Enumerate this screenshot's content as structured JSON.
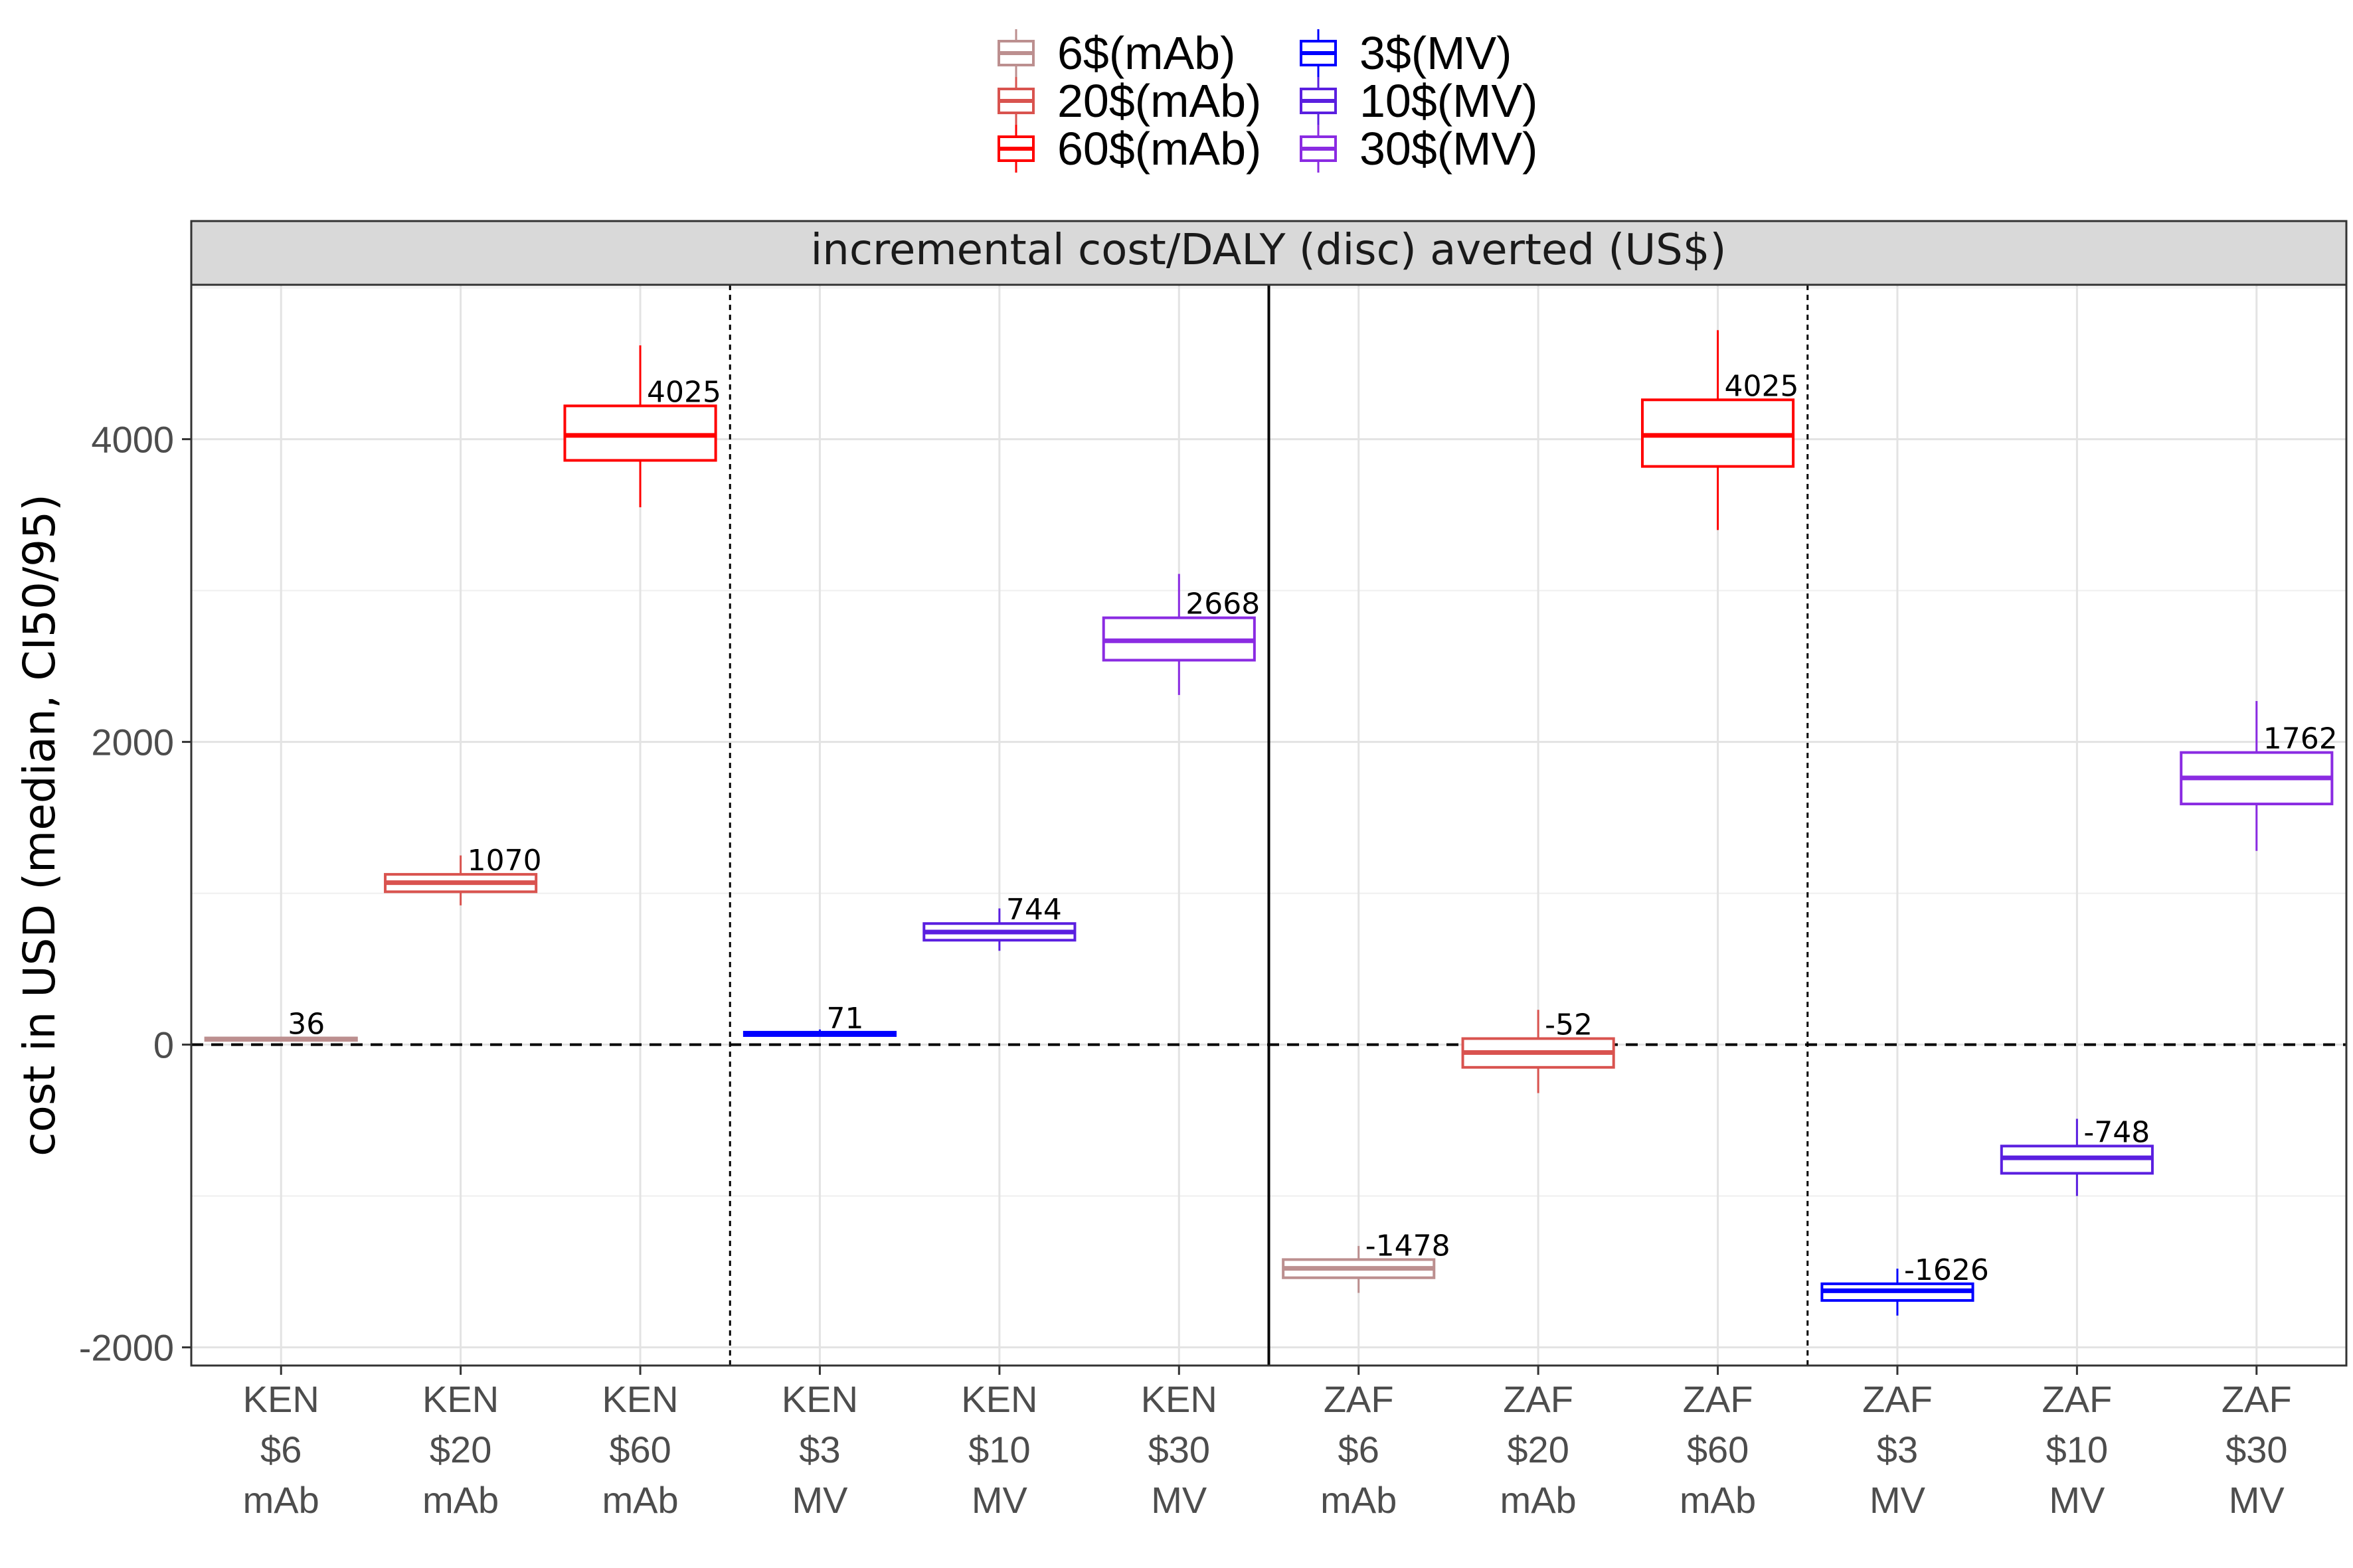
{
  "legend": {
    "items": [
      {
        "label": "6$(mAb)",
        "color": "#BC8F8F"
      },
      {
        "label": "20$(mAb)",
        "color": "#D9534F"
      },
      {
        "label": "60$(mAb)",
        "color": "#FF0000"
      },
      {
        "label": "3$(MV)",
        "color": "#0000FF"
      },
      {
        "label": "10$(MV)",
        "color": "#5A1FE0"
      },
      {
        "label": "30$(MV)",
        "color": "#8A2BE2"
      }
    ]
  },
  "chart_data": {
    "type": "boxplot",
    "strip_title": "incremental cost/DALY (disc) averted (US$)",
    "ylabel": "cost in USD (median, CI50/95)",
    "xlabel": "",
    "ylim": [
      -2120,
      5020
    ],
    "yticks": [
      -2000,
      0,
      2000,
      4000
    ],
    "grid": true,
    "reference_line_y": 0,
    "categories": [
      [
        "KEN",
        "$6",
        "mAb"
      ],
      [
        "KEN",
        "$20",
        "mAb"
      ],
      [
        "KEN",
        "$60",
        "mAb"
      ],
      [
        "KEN",
        "$3",
        "MV"
      ],
      [
        "KEN",
        "$10",
        "MV"
      ],
      [
        "KEN",
        "$30",
        "MV"
      ],
      [
        "ZAF",
        "$6",
        "mAb"
      ],
      [
        "ZAF",
        "$20",
        "mAb"
      ],
      [
        "ZAF",
        "$60",
        "mAb"
      ],
      [
        "ZAF",
        "$3",
        "MV"
      ],
      [
        "ZAF",
        "$10",
        "MV"
      ],
      [
        "ZAF",
        "$30",
        "MV"
      ]
    ],
    "boxes": [
      {
        "series": "6$(mAb)",
        "low": 20,
        "q1": 28,
        "median": 36,
        "q3": 44,
        "high": 52,
        "label": "36"
      },
      {
        "series": "20$(mAb)",
        "low": 920,
        "q1": 1010,
        "median": 1070,
        "q3": 1125,
        "high": 1250,
        "label": "1070"
      },
      {
        "series": "60$(mAb)",
        "low": 3550,
        "q1": 3860,
        "median": 4025,
        "q3": 4220,
        "high": 4620,
        "label": "4025"
      },
      {
        "series": "3$(MV)",
        "low": 55,
        "q1": 60,
        "median": 71,
        "q3": 82,
        "high": 100,
        "label": "71"
      },
      {
        "series": "10$(MV)",
        "low": 620,
        "q1": 690,
        "median": 744,
        "q3": 800,
        "high": 900,
        "label": "744"
      },
      {
        "series": "30$(MV)",
        "low": 2310,
        "q1": 2540,
        "median": 2668,
        "q3": 2820,
        "high": 3110,
        "label": "2668"
      },
      {
        "series": "6$(mAb)",
        "low": -1640,
        "q1": -1540,
        "median": -1478,
        "q3": -1420,
        "high": -1330,
        "label": "-1478"
      },
      {
        "series": "20$(mAb)",
        "low": -320,
        "q1": -150,
        "median": -52,
        "q3": 40,
        "high": 230,
        "label": "-52"
      },
      {
        "series": "60$(mAb)",
        "low": 3400,
        "q1": 3820,
        "median": 4025,
        "q3": 4260,
        "high": 4720,
        "label": "4025"
      },
      {
        "series": "3$(MV)",
        "low": -1790,
        "q1": -1690,
        "median": -1626,
        "q3": -1580,
        "high": -1480,
        "label": "-1626"
      },
      {
        "series": "10$(MV)",
        "low": -1000,
        "q1": -850,
        "median": -748,
        "q3": -670,
        "high": -490,
        "label": "-748"
      },
      {
        "series": "30$(MV)",
        "low": 1280,
        "q1": 1590,
        "median": 1762,
        "q3": 1930,
        "high": 2270,
        "label": "1762"
      }
    ],
    "dividers": [
      {
        "after_category": 3,
        "style": "dotted"
      },
      {
        "after_category": 6,
        "style": "solid"
      },
      {
        "after_category": 9,
        "style": "dotted"
      }
    ]
  }
}
